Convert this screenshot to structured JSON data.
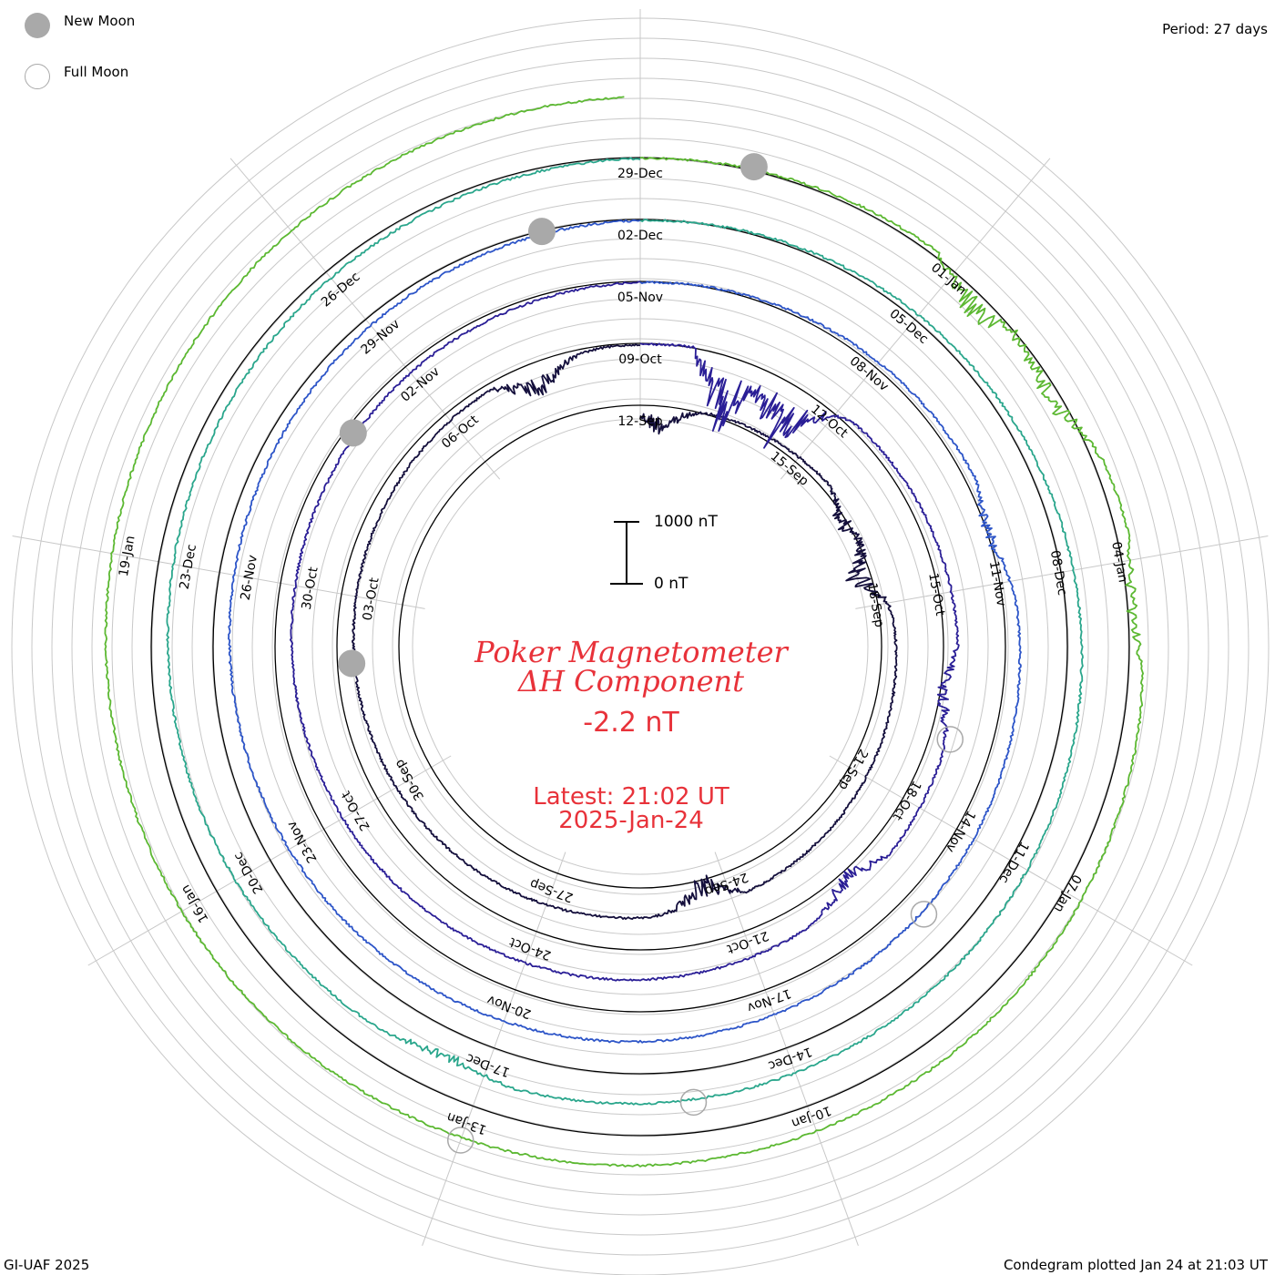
{
  "header": {
    "period": "Period: 27 days",
    "legend": [
      {
        "label": "New Moon",
        "style": "filled"
      },
      {
        "label": "Full Moon",
        "style": "open"
      }
    ]
  },
  "footer": {
    "left": "GI-UAF 2025",
    "right": "Condegram plotted Jan 24 at 21:03 UT"
  },
  "center": {
    "title_line1": "Poker Magnetometer",
    "title_line2": "ΔH Component",
    "value": "-2.2 nT",
    "latest_line1": "Latest: 21:02 UT",
    "latest_line2": "2025-Jan-24",
    "scale_top": "1000 nT",
    "scale_bottom": "0 nT"
  },
  "colors": {
    "title": "#e8323a",
    "grid": "#c8c8c8",
    "moon_fill": "#a9a9a9",
    "rings": [
      "#140f3c",
      "#2a1e96",
      "#2d55c8",
      "#2aa68c",
      "#5cb832",
      "#b4a41e",
      "#c88214",
      "#c84614",
      "#be2814"
    ]
  },
  "chart_data": {
    "type": "line",
    "subtype": "spiral-condegram",
    "period_days": 27,
    "start": "2024-09-12",
    "end": "2025-01-24",
    "y_unit": "nT",
    "scale_bar": [
      0,
      1000
    ],
    "date_labels": [
      "12-Sep",
      "15-Sep",
      "18-Sep",
      "21-Sep",
      "24-Sep",
      "27-Sep",
      "30-Sep",
      "03-Oct",
      "06-Oct",
      "09-Oct",
      "12-Oct",
      "15-Oct",
      "18-Oct",
      "21-Oct",
      "24-Oct",
      "27-Oct",
      "30-Oct",
      "02-Nov",
      "05-Nov",
      "08-Nov",
      "11-Nov",
      "14-Nov",
      "17-Nov",
      "20-Nov",
      "23-Nov",
      "26-Nov",
      "29-Nov",
      "02-Dec",
      "05-Dec",
      "08-Dec",
      "11-Dec",
      "14-Dec",
      "17-Dec",
      "20-Dec",
      "23-Dec",
      "26-Dec",
      "29-Dec",
      "01-Jan",
      "04-Jan",
      "07-Jan",
      "10-Jan",
      "13-Jan",
      "16-Jan",
      "19-Jan"
    ],
    "new_moons": [
      "2024-10-02",
      "2024-11-01",
      "2024-12-01",
      "2024-12-30"
    ],
    "full_moons": [
      "2024-10-17",
      "2024-11-15",
      "2024-12-15",
      "2025-01-13"
    ],
    "activity_events": [
      {
        "date": "2024-09-12",
        "peak_nT": 350
      },
      {
        "date": "2024-09-16",
        "peak_nT": 250
      },
      {
        "date": "2024-09-17",
        "peak_nT": 450
      },
      {
        "date": "2024-09-24",
        "peak_nT": 400
      },
      {
        "date": "2024-10-07",
        "peak_nT": 380
      },
      {
        "date": "2024-10-10",
        "peak_nT": 1000
      },
      {
        "date": "2024-10-11",
        "peak_nT": 900
      },
      {
        "date": "2024-10-16",
        "peak_nT": 250
      },
      {
        "date": "2024-10-19",
        "peak_nT": 300
      },
      {
        "date": "2024-11-10",
        "peak_nT": 200
      },
      {
        "date": "2024-12-17",
        "peak_nT": 150
      },
      {
        "date": "2025-01-01",
        "peak_nT": 400
      },
      {
        "date": "2025-01-02",
        "peak_nT": 350
      },
      {
        "date": "2025-01-04",
        "peak_nT": 200
      }
    ]
  }
}
